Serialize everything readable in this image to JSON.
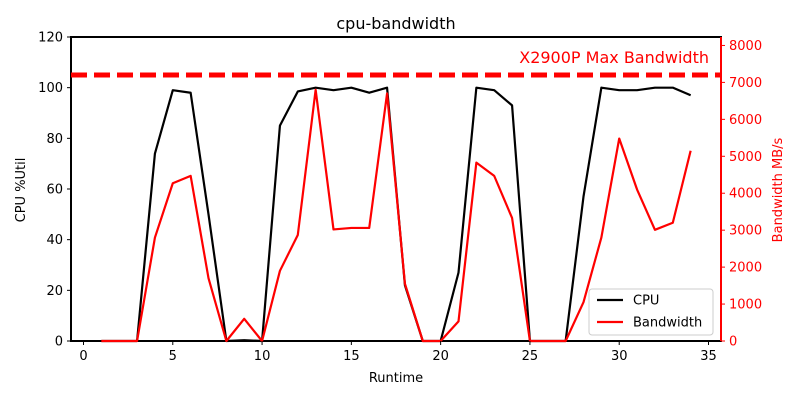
{
  "chart_data": {
    "type": "line",
    "title": "cpu-bandwidth",
    "xlabel": "Runtime",
    "ylabel_left": "CPU %Util",
    "ylabel_right": "Bandwidth MB/s",
    "xlim": [
      -0.7,
      35.7
    ],
    "ylim_left": [
      0,
      120
    ],
    "ylim_right": [
      0,
      8229
    ],
    "xticks": [
      0,
      5,
      10,
      15,
      20,
      25,
      30,
      35
    ],
    "yticks_left": [
      0,
      20,
      40,
      60,
      80,
      100,
      120
    ],
    "yticks_right": [
      0,
      1000,
      2000,
      3000,
      4000,
      5000,
      6000,
      7000,
      8000
    ],
    "grid": false,
    "legend_position": "lower-right",
    "series": [
      {
        "name": "CPU",
        "axis": "left",
        "color": "#000000",
        "x": [
          1,
          2,
          3,
          4,
          5,
          6,
          7,
          8,
          9,
          10,
          11,
          12,
          13,
          14,
          15,
          16,
          17,
          18,
          19,
          20,
          21,
          22,
          23,
          24,
          25,
          26,
          27,
          28,
          29,
          30,
          31,
          32,
          33,
          34
        ],
        "y": [
          0,
          0,
          0,
          74,
          99,
          98,
          50,
          0,
          0.3,
          0,
          85,
          98.5,
          100,
          99,
          100,
          98,
          100,
          22,
          0,
          0,
          27,
          100,
          99,
          93,
          0,
          0,
          0,
          57,
          100,
          99,
          99,
          100,
          100,
          97
        ]
      },
      {
        "name": "Bandwidth",
        "axis": "right",
        "color": "#ff0000",
        "x": [
          1,
          2,
          3,
          4,
          5,
          6,
          7,
          8,
          9,
          10,
          11,
          12,
          13,
          14,
          15,
          16,
          17,
          18,
          19,
          20,
          21,
          22,
          23,
          24,
          25,
          26,
          27,
          28,
          29,
          30,
          31,
          32,
          33,
          34
        ],
        "y": [
          0,
          0,
          0,
          2800,
          4270,
          4470,
          1700,
          0,
          600,
          0,
          1900,
          2870,
          6800,
          3020,
          3060,
          3060,
          6700,
          1550,
          0,
          0,
          530,
          4830,
          4470,
          3330,
          0,
          0,
          0,
          1050,
          2800,
          5480,
          4100,
          3010,
          3200,
          5150
        ]
      }
    ],
    "reference_line": {
      "axis": "right",
      "value": 7200,
      "label": "X2900P Max Bandwidth",
      "color": "#ff0000"
    },
    "colors": {
      "primary_axis": "#000000",
      "secondary_axis": "#ff0000"
    }
  }
}
